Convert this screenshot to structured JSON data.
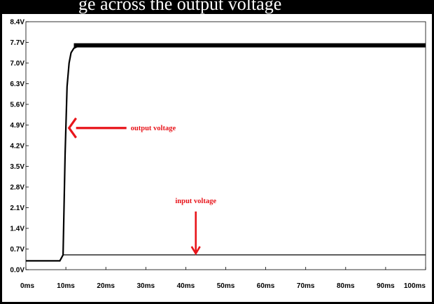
{
  "top_caption": "ge across the output voltage",
  "colors": {
    "annotation": "#e8151b",
    "trace": "#000000",
    "background": "#ffffff"
  },
  "chart_data": {
    "type": "line",
    "title": "",
    "xlabel": "",
    "ylabel": "",
    "xlim": [
      0,
      100
    ],
    "ylim": [
      0,
      8.4
    ],
    "grid": false,
    "x_ticks": [
      0,
      10,
      20,
      30,
      40,
      50,
      60,
      70,
      80,
      90,
      100
    ],
    "x_tick_labels": [
      "0ms",
      "10ms",
      "20ms",
      "30ms",
      "40ms",
      "50ms",
      "60ms",
      "70ms",
      "80ms",
      "90ms",
      "100ms"
    ],
    "y_ticks": [
      0.0,
      0.7,
      1.4,
      2.1,
      2.8,
      3.5,
      4.2,
      4.9,
      5.6,
      6.3,
      7.0,
      7.7,
      8.4
    ],
    "y_tick_labels": [
      "0.0V",
      "0.7V",
      "1.4V",
      "2.1V",
      "2.8V",
      "3.5V",
      "4.2V",
      "4.9V",
      "5.6V",
      "6.3V",
      "7.0V",
      "7.7V",
      "8.4V"
    ],
    "series": [
      {
        "name": "",
        "color": "#000000",
        "x": [
          0,
          8.5,
          9.3,
          9.8,
          10.3,
          10.8,
          11.3,
          12,
          13,
          15,
          20,
          40,
          60,
          80,
          100
        ],
        "y": [
          0.3,
          0.3,
          0.5,
          3.9,
          6.2,
          7.0,
          7.35,
          7.5,
          7.57,
          7.6,
          7.6,
          7.6,
          7.6,
          7.6,
          7.6
        ]
      },
      {
        "name": "",
        "color": "#000000",
        "x": [
          9.3,
          100
        ],
        "y": [
          0.5,
          0.5
        ]
      }
    ],
    "annotations": [
      {
        "text": "output voltage",
        "x": 10.8,
        "y": 4.8,
        "arrow": "left"
      },
      {
        "text": "input voltage",
        "x": 42.5,
        "y": 0.5,
        "arrow": "down"
      }
    ]
  }
}
